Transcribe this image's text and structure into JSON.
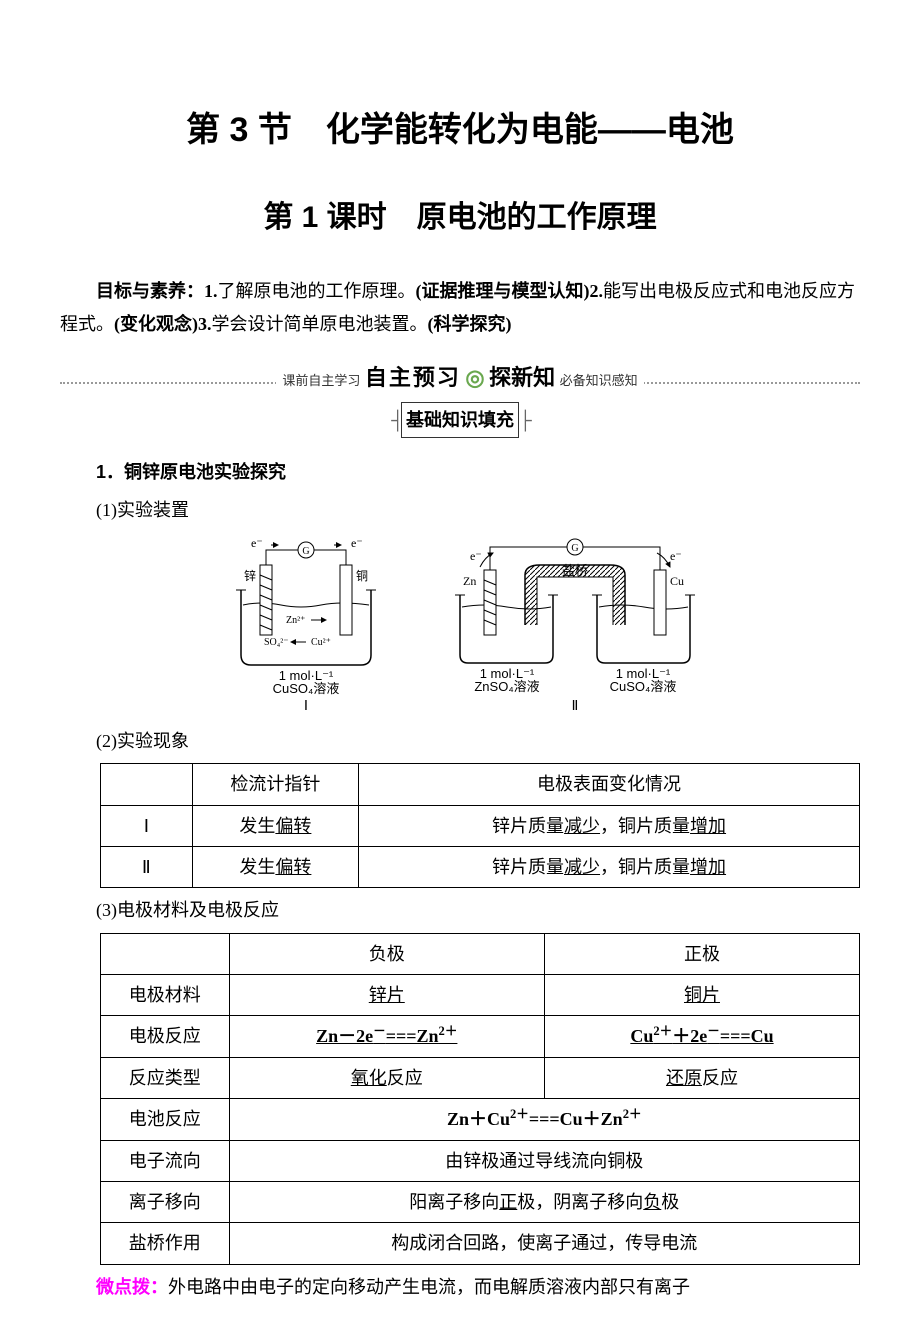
{
  "title_main": "第 3 节　化学能转化为电能——电池",
  "title_sub": "第 1 课时　原电池的工作原理",
  "objectives_html": "<span class='bold'>目标与素养：1.</span>了解原电池的工作原理。<span class='bold'>(证据推理与模型认知)2.</span>能写出电极反应式和电池反应方程式。<span class='bold'>(变化观念)3.</span>学会设计简单原电池装置。<span class='bold'>(科学探究)</span>",
  "banner": {
    "left": "课前自主学习",
    "main1": "自主预习",
    "sep": "◎",
    "main2": "探新知",
    "right": "必备知识感知"
  },
  "knowledge_fill": "基础知识填充",
  "sec1_title": "1．铜锌原电池实验探究",
  "sec1_1": "(1)实验装置",
  "sec1_2": "(2)实验现象",
  "sec1_3": "(3)电极材料及电极反应",
  "diagram1": {
    "zn": "锌",
    "cu": "铜",
    "e": "e⁻",
    "meter": "G",
    "ion_zn": "Zn²⁺",
    "ion_so4": "SO₄²⁻",
    "ion_cu": "Cu²⁺",
    "cap1": "1 mol·L⁻¹",
    "cap2": "CuSO₄溶液",
    "label": "Ⅰ"
  },
  "diagram2": {
    "zn": "Zn",
    "cu": "Cu",
    "e": "e⁻",
    "meter": "G",
    "bridge": "盐桥",
    "cap_l1": "1 mol·L⁻¹",
    "cap_l2": "ZnSO₄溶液",
    "cap_r1": "1 mol·L⁻¹",
    "cap_r2": "CuSO₄溶液",
    "label": "Ⅱ"
  },
  "table1": {
    "headers": [
      "",
      "检流计指针",
      "电极表面变化情况"
    ],
    "rows": [
      [
        "Ⅰ",
        "发生<span class='u'>偏转</span>",
        "锌片质量<span class='u'>减少</span>，铜片质量<span class='u'>增加</span>"
      ],
      [
        "Ⅱ",
        "发生<span class='u'>偏转</span>",
        "锌片质量<span class='u'>减少</span>，铜片质量<span class='u'>增加</span>"
      ]
    ],
    "col_widths": [
      "80px",
      "160px",
      "520px"
    ]
  },
  "table2": {
    "col_widths": [
      "120px",
      "320px",
      "320px"
    ],
    "rows": [
      {
        "cells": [
          "",
          "负极",
          "正极"
        ]
      },
      {
        "cells": [
          "电极材料",
          "<span class='u'>锌片</span>",
          "<span class='u'>铜片</span>"
        ]
      },
      {
        "cells": [
          "电极反应",
          "<span class='u'><b>Zn－2e<sup>－</sup>===Zn<sup>2＋</sup></b></span>",
          "<span class='u'><b>Cu<sup>2＋</sup>＋2e<sup>－</sup>===Cu</b></span>"
        ]
      },
      {
        "cells": [
          "反应类型",
          "<span class='u'>氧化</span>反应",
          "<span class='u'>还原</span>反应"
        ]
      },
      {
        "cells": [
          "电池反应"
        ],
        "merged": "<b>Zn＋Cu<sup>2＋</sup>===Cu＋Zn<sup>2＋</sup></b>"
      },
      {
        "cells": [
          "电子流向"
        ],
        "merged": "由锌极通过导线流向铜极"
      },
      {
        "cells": [
          "离子移向"
        ],
        "merged": "阳离子移向<span class='u'>正</span>极，阴离子移向<span class='u'>负</span>极"
      },
      {
        "cells": [
          "盐桥作用"
        ],
        "merged": "构成闭合回路，使离子通过，传导电流"
      }
    ]
  },
  "tip_label": "微点拨：",
  "tip_text": "外电路中由电子的定向移动产生电流，而电解质溶液内部只有离子"
}
